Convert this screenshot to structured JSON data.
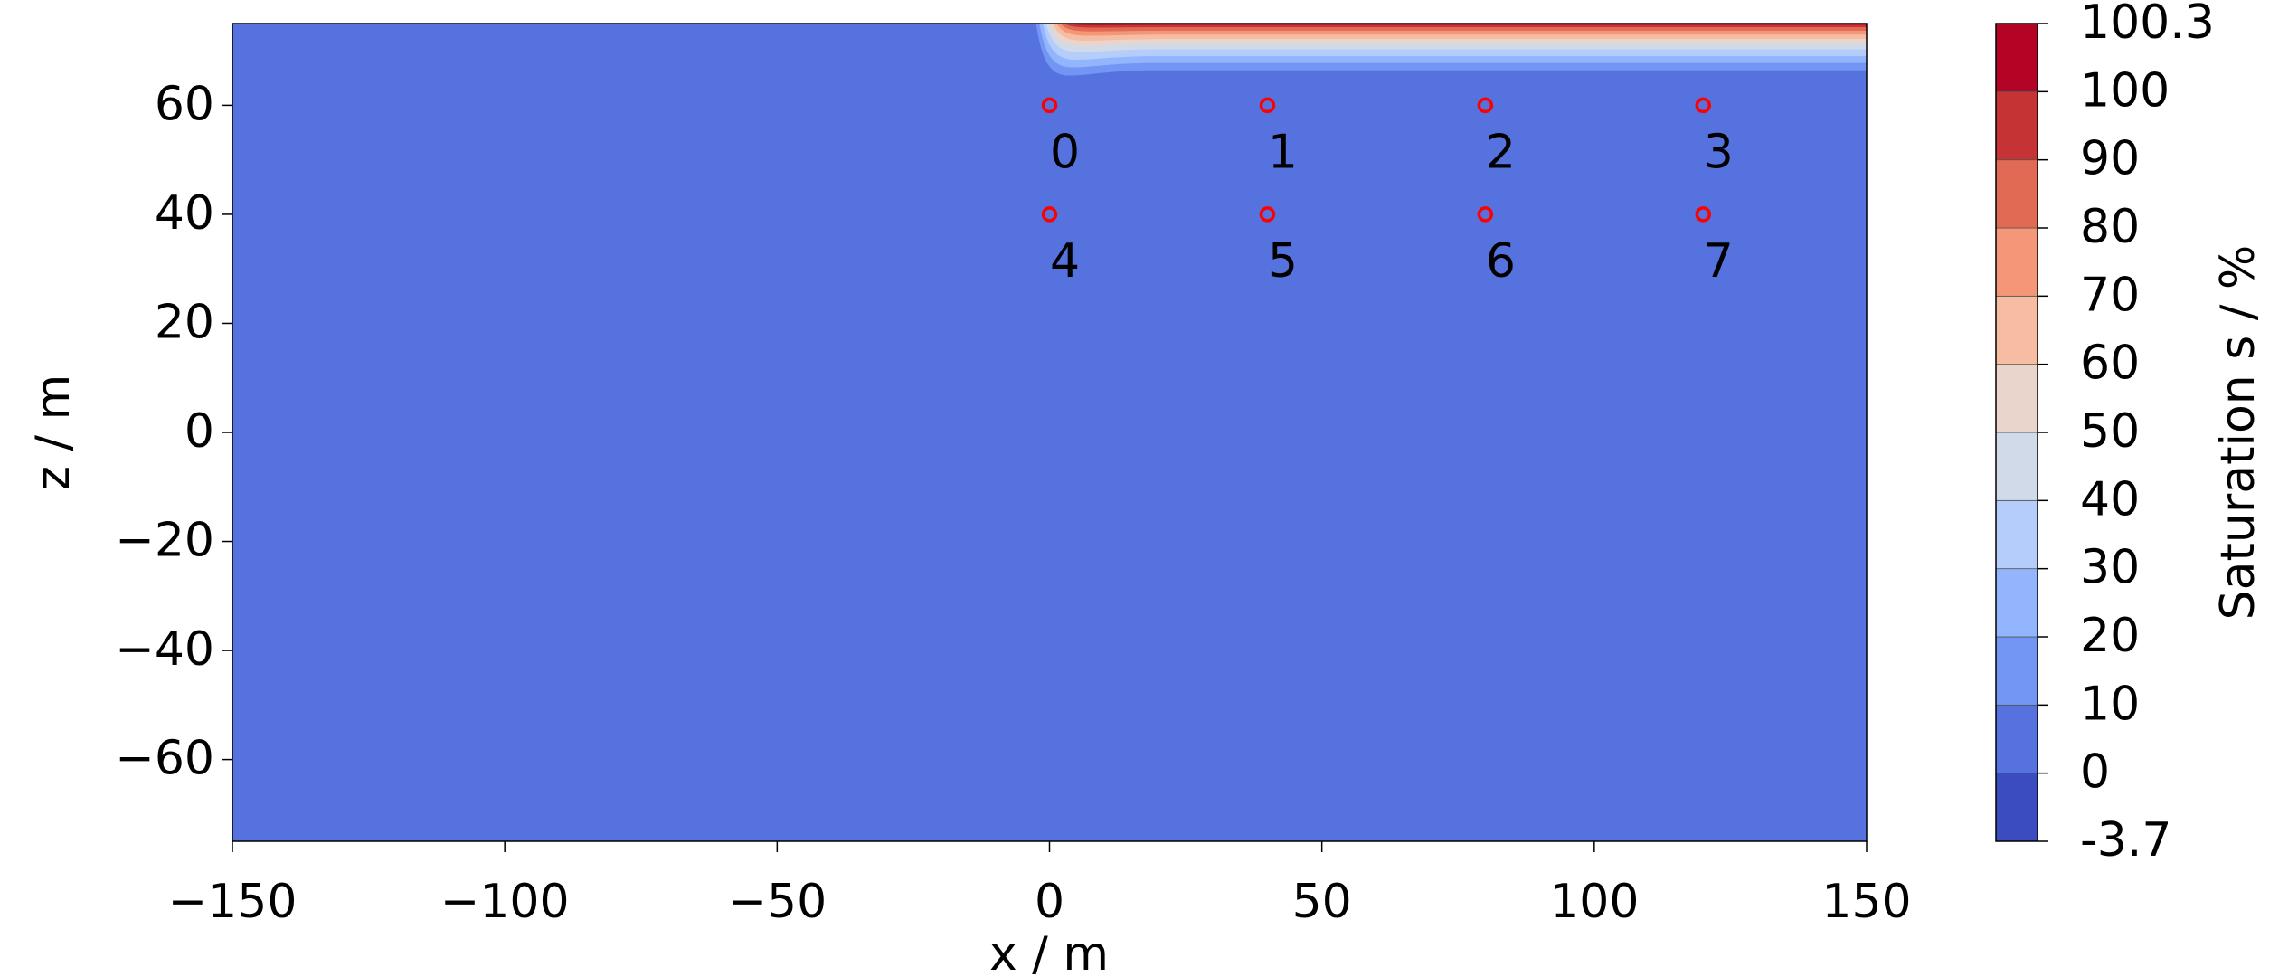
{
  "chart_data": {
    "type": "contour",
    "xlabel": "x / m",
    "ylabel": "z / m",
    "xlim": [
      -150,
      150
    ],
    "ylim": [
      -75,
      75
    ],
    "xticks": [
      {
        "value": -150,
        "label": "−150"
      },
      {
        "value": -100,
        "label": "−100"
      },
      {
        "value": -50,
        "label": "−50"
      },
      0,
      50,
      100,
      150
    ],
    "yticks": [
      {
        "value": -60,
        "label": "−60"
      },
      {
        "value": -40,
        "label": "−40"
      },
      {
        "value": -20,
        "label": "−20"
      },
      0,
      20,
      40,
      60
    ],
    "colorbar": {
      "label": "Saturation s / %",
      "levels": [
        -3.7,
        0,
        10,
        20,
        30,
        40,
        50,
        60,
        70,
        80,
        90,
        100,
        100.3
      ],
      "colors": [
        "#3b4cc0",
        "#5572df",
        "#7396f5",
        "#93b5fe",
        "#b5cdfa",
        "#d1dae9",
        "#e9d5cb",
        "#f6bda2",
        "#f39778",
        "#e16a54",
        "#c53334",
        "#b40426"
      ]
    },
    "points": {
      "color": "#ff0000",
      "x": [
        0,
        40,
        80,
        120,
        0,
        40,
        80,
        120
      ],
      "y": [
        60,
        60,
        60,
        60,
        40,
        40,
        40,
        40
      ],
      "labels": [
        "0",
        "1",
        "2",
        "3",
        "4",
        "5",
        "6",
        "7"
      ]
    }
  }
}
